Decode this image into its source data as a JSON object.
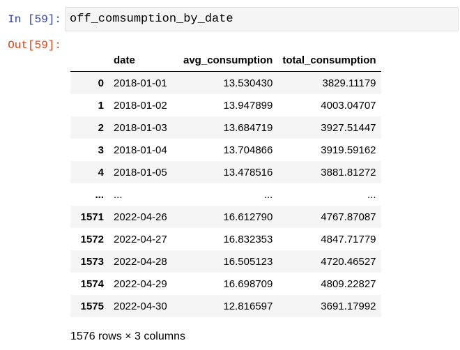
{
  "cell": {
    "in_prompt": "In [59]:",
    "out_prompt": "Out[59]:",
    "code": "off_comsumption_by_date"
  },
  "dataframe": {
    "columns": [
      "",
      "date",
      "avg_consumption",
      "total_consumption"
    ],
    "rows": [
      {
        "index": "0",
        "date": "2018-01-01",
        "avg": "13.530430",
        "total": "3829.11179"
      },
      {
        "index": "1",
        "date": "2018-01-02",
        "avg": "13.947899",
        "total": "4003.04707"
      },
      {
        "index": "2",
        "date": "2018-01-03",
        "avg": "13.684719",
        "total": "3927.51447"
      },
      {
        "index": "3",
        "date": "2018-01-04",
        "avg": "13.704866",
        "total": "3919.59162"
      },
      {
        "index": "4",
        "date": "2018-01-05",
        "avg": "13.478516",
        "total": "3881.81272"
      },
      {
        "index": "...",
        "date": "...",
        "avg": "...",
        "total": "..."
      },
      {
        "index": "1571",
        "date": "2022-04-26",
        "avg": "16.612790",
        "total": "4767.87087"
      },
      {
        "index": "1572",
        "date": "2022-04-27",
        "avg": "16.832353",
        "total": "4847.71779"
      },
      {
        "index": "1573",
        "date": "2022-04-28",
        "avg": "16.505123",
        "total": "4720.46527"
      },
      {
        "index": "1574",
        "date": "2022-04-29",
        "avg": "16.698709",
        "total": "4809.22827"
      },
      {
        "index": "1575",
        "date": "2022-04-30",
        "avg": "12.816597",
        "total": "3691.17992"
      }
    ],
    "shape_text": "1576 rows × 3 columns"
  },
  "colors": {
    "in_prompt": "#303f9f",
    "out_prompt": "#d84315",
    "cell_bg": "#f5f5f5",
    "cell_border": "#e0e0e0"
  }
}
